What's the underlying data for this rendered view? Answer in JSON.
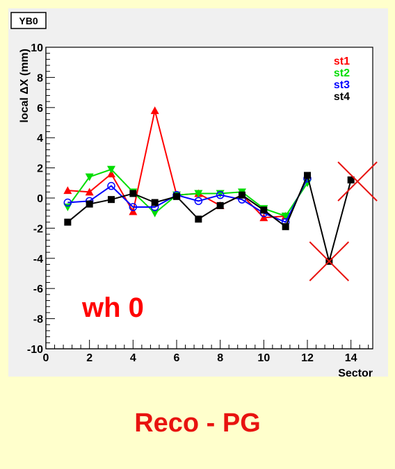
{
  "canvas_label": "YB0",
  "caption": "Reco - PG",
  "chart_data": {
    "type": "line",
    "title": "",
    "xlabel": "Sector",
    "ylabel": "local ΔX (mm)",
    "xlim": [
      0,
      15
    ],
    "ylim": [
      -10,
      10
    ],
    "x_ticks": [
      0,
      2,
      4,
      6,
      8,
      10,
      12,
      14
    ],
    "y_ticks": [
      -10,
      -8,
      -6,
      -4,
      -2,
      0,
      2,
      4,
      6,
      8,
      10
    ],
    "grid": false,
    "legend_position": "top-right",
    "annotation": "wh 0",
    "rejected_points": [
      {
        "x": 13,
        "y": -4.2
      },
      {
        "x": 14.3,
        "y": 1.1
      }
    ],
    "series": [
      {
        "name": "st1",
        "color": "#ff0000",
        "marker": "triangle",
        "x": [
          1,
          2,
          3,
          4,
          5,
          6,
          7,
          8,
          9,
          10,
          11
        ],
        "y": [
          0.5,
          0.4,
          1.6,
          -0.9,
          5.8,
          0.2,
          0.3,
          -0.5,
          0.2,
          -1.3,
          -1.2
        ]
      },
      {
        "name": "st2",
        "color": "#00dd00",
        "marker": "inverted-triangle",
        "x": [
          1,
          2,
          3,
          4,
          5,
          6,
          7,
          8,
          9,
          10,
          11,
          12
        ],
        "y": [
          -0.6,
          1.4,
          1.9,
          0.4,
          -1.0,
          0.2,
          0.3,
          0.3,
          0.4,
          -0.7,
          -1.2,
          1.0
        ]
      },
      {
        "name": "st3",
        "color": "#0000ff",
        "marker": "open-circle",
        "x": [
          1,
          2,
          3,
          4,
          5,
          6,
          7,
          8,
          9,
          10,
          11,
          12
        ],
        "y": [
          -0.3,
          -0.2,
          0.8,
          -0.6,
          -0.6,
          0.2,
          -0.2,
          0.2,
          -0.1,
          -1.0,
          -1.6,
          1.3
        ]
      },
      {
        "name": "st4",
        "color": "#000000",
        "marker": "square",
        "x": [
          1,
          2,
          3,
          4,
          5,
          6,
          7,
          8,
          9,
          10,
          11,
          12,
          13,
          14
        ],
        "y": [
          -1.6,
          -0.4,
          -0.1,
          0.3,
          -0.3,
          0.1,
          -1.4,
          -0.5,
          0.2,
          -0.8,
          -1.9,
          1.5,
          -4.2,
          1.2
        ]
      }
    ]
  }
}
